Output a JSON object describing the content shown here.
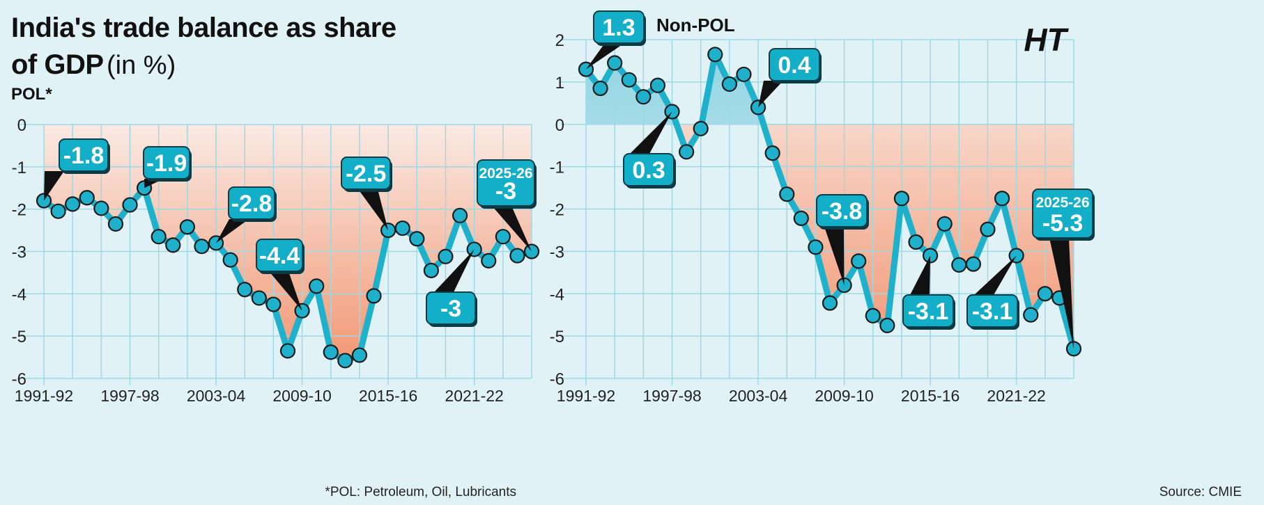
{
  "title": {
    "line1": "India's trade balance as share",
    "line2": "of GDP",
    "unit": "(in %)"
  },
  "logo": "HT",
  "footnote": "*POL: Petroleum, Oil, Lubricants",
  "source": "Source: CMIE",
  "colors": {
    "background": "#e1f2f6",
    "line": "#1fb1cb",
    "negative_fill": "#f2946e",
    "positive_fill": "#8fd3e2",
    "callout_fill": "#13aec8",
    "callout_text": "#ffffff",
    "grid": "#9bd9e6",
    "axis_text": "#222222"
  },
  "chart_data": [
    {
      "type": "line",
      "title": "POL*",
      "x_tick_labels": [
        "1991-92",
        "1997-98",
        "2003-04",
        "2009-10",
        "2015-16",
        "2021-22"
      ],
      "y_ticks": [
        0,
        -1,
        -2,
        -3,
        -4,
        -5,
        -6
      ],
      "ylim": [
        -6,
        0
      ],
      "grid": true,
      "series": [
        {
          "x": [
            "1991-92",
            "1992-93",
            "1993-94",
            "1994-95",
            "1995-96",
            "1996-97",
            "1997-98",
            "1998-99",
            "1999-00",
            "2000-01",
            "2001-02",
            "2002-03",
            "2003-04",
            "2004-05",
            "2005-06",
            "2006-07",
            "2007-08",
            "2008-09",
            "2009-10",
            "2010-11",
            "2011-12",
            "2012-13",
            "2013-14",
            "2014-15",
            "2015-16",
            "2016-17",
            "2017-18",
            "2018-19",
            "2019-20",
            "2020-21",
            "2021-22",
            "2022-23",
            "2023-24",
            "2024-25",
            "2025-26"
          ],
          "values": [
            -1.8,
            -2.05,
            -1.88,
            -1.73,
            -1.98,
            -2.35,
            -1.9,
            -1.5,
            -2.65,
            -2.85,
            -2.42,
            -2.88,
            -2.8,
            -3.2,
            -3.9,
            -4.1,
            -4.25,
            -5.35,
            -4.4,
            -3.82,
            -5.38,
            -5.58,
            -5.45,
            -4.05,
            -2.5,
            -2.45,
            -2.7,
            -3.45,
            -3.12,
            -2.15,
            -2.95,
            -3.22,
            -2.65,
            -3.1,
            -3.0
          ]
        }
      ],
      "callouts": [
        {
          "label": "-1.8"
        },
        {
          "label": "-1.9"
        },
        {
          "label": "-2.8"
        },
        {
          "label": "-4.4"
        },
        {
          "label": "-2.5"
        },
        {
          "label": "-3"
        },
        {
          "year": "2025-26",
          "label": "-3"
        }
      ]
    },
    {
      "type": "line",
      "title": "Non-POL",
      "x_tick_labels": [
        "1991-92",
        "1997-98",
        "2003-04",
        "2009-10",
        "2015-16",
        "2021-22"
      ],
      "y_ticks": [
        2,
        1,
        0,
        -1,
        -2,
        -3,
        -4,
        -5,
        -6
      ],
      "ylim": [
        -6,
        2
      ],
      "grid": true,
      "series": [
        {
          "x": [
            "1991-92",
            "1992-93",
            "1993-94",
            "1994-95",
            "1995-96",
            "1996-97",
            "1997-98",
            "1998-99",
            "1999-00",
            "2000-01",
            "2001-02",
            "2002-03",
            "2003-04",
            "2004-05",
            "2005-06",
            "2006-07",
            "2007-08",
            "2008-09",
            "2009-10",
            "2010-11",
            "2011-12",
            "2012-13",
            "2013-14",
            "2014-15",
            "2015-16",
            "2016-17",
            "2017-18",
            "2018-19",
            "2019-20",
            "2020-21",
            "2021-22",
            "2022-23",
            "2023-24",
            "2024-25",
            "2025-26"
          ],
          "values": [
            1.3,
            0.85,
            1.45,
            1.05,
            0.65,
            0.92,
            0.3,
            -0.65,
            -0.1,
            1.65,
            0.95,
            1.18,
            0.4,
            -0.68,
            -1.65,
            -2.22,
            -2.9,
            -4.22,
            -3.8,
            -3.23,
            -4.52,
            -4.75,
            -1.75,
            -2.78,
            -3.1,
            -2.35,
            -3.32,
            -3.3,
            -2.48,
            -1.75,
            -3.1,
            -4.5,
            -4.0,
            -4.1,
            -5.3
          ]
        }
      ],
      "callouts": [
        {
          "label": "1.3"
        },
        {
          "label": "0.3"
        },
        {
          "label": "0.4"
        },
        {
          "label": "-3.8"
        },
        {
          "label": "-3.1"
        },
        {
          "label": "-3.1"
        },
        {
          "year": "2025-26",
          "label": "-5.3"
        }
      ]
    }
  ]
}
